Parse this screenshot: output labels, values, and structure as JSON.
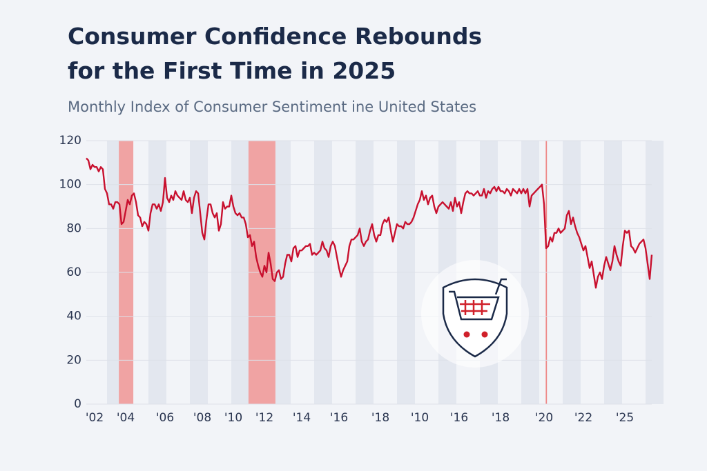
{
  "chart_data": {
    "type": "line",
    "title": [
      "Consumer Confidence Rebounds",
      "for the First Time in 2025"
    ],
    "subtitle": "Monthly Index of Consumer Sentiment ine United States",
    "series": [
      {
        "color": "#c8102e",
        "values": [
          112,
          111,
          107,
          109,
          108,
          108,
          106,
          108,
          107,
          98,
          96,
          91,
          91,
          89,
          92,
          92,
          91,
          82,
          83,
          88,
          93,
          91,
          95,
          96,
          92,
          86,
          85,
          81,
          83,
          82,
          79,
          87,
          91,
          91,
          89,
          91,
          88,
          92,
          103,
          94,
          92,
          95,
          93,
          97,
          95,
          94,
          93,
          97,
          93,
          92,
          94,
          87,
          94,
          97,
          96,
          87,
          78,
          75,
          84,
          91,
          91,
          87,
          85,
          87,
          79,
          82,
          92,
          89,
          90,
          90,
          95,
          90,
          87,
          86,
          87,
          85,
          85,
          82,
          76,
          77,
          72,
          74,
          67,
          63,
          60,
          58,
          63,
          60,
          69,
          64,
          57,
          56,
          60,
          61,
          57,
          58,
          64,
          68,
          68,
          65,
          71,
          72,
          67,
          70,
          70,
          71,
          72,
          72,
          73,
          68,
          69,
          68,
          69,
          70,
          74,
          71,
          70,
          67,
          72,
          74,
          72,
          67,
          62,
          58,
          61,
          63,
          65,
          72,
          75,
          75,
          76,
          77,
          80,
          74,
          72,
          74,
          75,
          79,
          82,
          77,
          74,
          77,
          77,
          82,
          84,
          83,
          85,
          79,
          74,
          78,
          82,
          81,
          81,
          80,
          83,
          82,
          82,
          83,
          85,
          88,
          91,
          93,
          97,
          93,
          95,
          91,
          94,
          95,
          90,
          87,
          90,
          91,
          92,
          91,
          90,
          89,
          92,
          88,
          94,
          90,
          92,
          87,
          92,
          96,
          97,
          96,
          96,
          95,
          96,
          97,
          95,
          95,
          98,
          94,
          97,
          96,
          98,
          99,
          97,
          99,
          97,
          97,
          96,
          98,
          97,
          95,
          98,
          97,
          96,
          98,
          96,
          98,
          96,
          98,
          90,
          95,
          96,
          97,
          98,
          99,
          100,
          91,
          71,
          72,
          76,
          74,
          78,
          78,
          80,
          78,
          79,
          80,
          86,
          88,
          82,
          85,
          81,
          78,
          76,
          73,
          70,
          72,
          67,
          62,
          65,
          59,
          53,
          58,
          60,
          57,
          63,
          67,
          64,
          61,
          65,
          72,
          68,
          65,
          63,
          72,
          79,
          78,
          79,
          72,
          71,
          69,
          71,
          73,
          74,
          75,
          71,
          64,
          57,
          68
        ]
      }
    ],
    "xlim": [
      0,
      273
    ],
    "xticks": [
      {
        "value": 4,
        "label": "'02"
      },
      {
        "value": 19,
        "label": "'04"
      },
      {
        "value": 38,
        "label": "'06"
      },
      {
        "value": 56,
        "label": "'08"
      },
      {
        "value": 71,
        "label": "'10"
      },
      {
        "value": 86,
        "label": "'12"
      },
      {
        "value": 104,
        "label": "'14"
      },
      {
        "value": 122,
        "label": "'16"
      },
      {
        "value": 142,
        "label": "'18"
      },
      {
        "value": 161,
        "label": "'10"
      },
      {
        "value": 180,
        "label": "'16"
      },
      {
        "value": 200,
        "label": "'18"
      },
      {
        "value": 221,
        "label": "'20"
      },
      {
        "value": 240,
        "label": "'22"
      },
      {
        "value": 260,
        "label": "'25"
      }
    ],
    "ylim": [
      0,
      120
    ],
    "yticks": [
      0,
      20,
      40,
      60,
      80,
      100,
      120
    ],
    "grid": true,
    "shaded_regions": [
      {
        "start": 15.7,
        "end": 22.7,
        "color": "#f0a3a3"
      },
      {
        "start": 78.3,
        "end": 91.3,
        "color": "#f0a3a3"
      },
      {
        "start": 221.8,
        "end": 222.4,
        "color": "#e88"
      }
    ]
  }
}
